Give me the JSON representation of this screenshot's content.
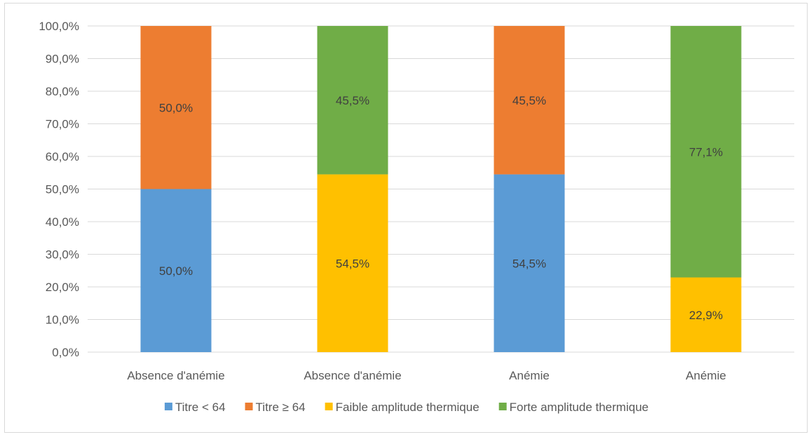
{
  "chart_data": {
    "type": "bar",
    "stacked": true,
    "categories": [
      "Absence d'anémie",
      "Absence d'anémie",
      "Anémie",
      "Anémie"
    ],
    "ylim": [
      0,
      100
    ],
    "y_ticks": [
      0,
      10,
      20,
      30,
      40,
      50,
      60,
      70,
      80,
      90,
      100
    ],
    "y_tick_labels": [
      "0,0%",
      "10,0%",
      "20,0%",
      "30,0%",
      "40,0%",
      "50,0%",
      "60,0%",
      "70,0%",
      "80,0%",
      "90,0%",
      "100,0%"
    ],
    "grid": true,
    "legend_position": "bottom",
    "series": [
      {
        "name": "Titre < 64",
        "color": "#5b9bd5",
        "values": [
          50.0,
          null,
          54.5,
          null
        ],
        "labels": [
          "50,0%",
          null,
          "54,5%",
          null
        ]
      },
      {
        "name": "Titre ≥ 64",
        "color": "#ed7d31",
        "values": [
          50.0,
          null,
          45.5,
          null
        ],
        "labels": [
          "50,0%",
          null,
          "45,5%",
          null
        ]
      },
      {
        "name": "Faible amplitude thermique",
        "color": "#ffc000",
        "values": [
          null,
          54.5,
          null,
          22.9
        ],
        "labels": [
          null,
          "54,5%",
          null,
          "22,9%"
        ]
      },
      {
        "name": "Forte amplitude thermique",
        "color": "#70ad47",
        "values": [
          null,
          45.5,
          null,
          77.1
        ],
        "labels": [
          null,
          "45,5%",
          null,
          "77,1%"
        ]
      }
    ]
  }
}
